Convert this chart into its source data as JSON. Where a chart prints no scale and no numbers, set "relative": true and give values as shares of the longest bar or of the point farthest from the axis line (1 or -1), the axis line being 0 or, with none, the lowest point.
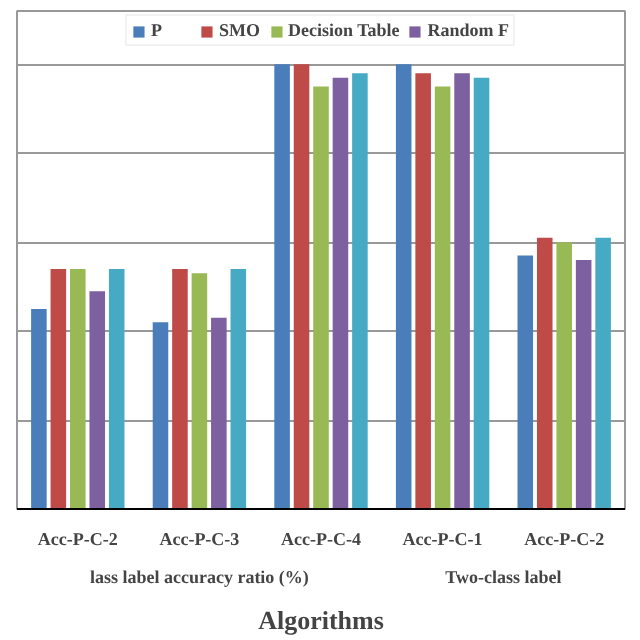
{
  "chart_data": {
    "type": "bar",
    "relative": true,
    "xlabel": "Algorithms",
    "categories": [
      "Acc-P-C-2",
      "Acc-P-C-3",
      "Acc-P-C-4",
      "Acc-P-C-1",
      "Acc-P-C-2"
    ],
    "series": [
      {
        "name": "P",
        "color": "#4a7ebb",
        "values": [
          0.45,
          0.42,
          1,
          1,
          0.57
        ]
      },
      {
        "name": "SMO",
        "color": "#be4b48",
        "values": [
          0.54,
          0.54,
          1,
          0.98,
          0.61
        ]
      },
      {
        "name": "Decision Table",
        "color": "#98b954",
        "values": [
          0.54,
          0.53,
          0.95,
          0.95,
          0.6
        ]
      },
      {
        "name": "Random F",
        "color": "#7d60a0",
        "values": [
          0.49,
          0.43,
          0.97,
          0.98,
          0.56
        ]
      },
      {
        "color": "#46aac5",
        "values": [
          0.54,
          0.54,
          0.98,
          0.97,
          0.61
        ]
      }
    ],
    "annotations": [
      "lass label accuracy ratio (%)",
      "Two-class label"
    ],
    "grid": "y",
    "legend": "top"
  }
}
